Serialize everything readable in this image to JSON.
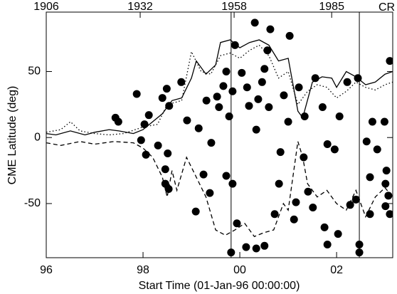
{
  "chart_data": {
    "type": "scatter",
    "x_label": "Start Time (01-Jan-96 00:00:00)",
    "y_label": "CME Latitude (deg)",
    "top_axis_label": "CR",
    "xlim": [
      0,
      7.16
    ],
    "xticks": [
      {
        "value": 0,
        "label": "96"
      },
      {
        "value": 2,
        "label": "98"
      },
      {
        "value": 4,
        "label": "00"
      },
      {
        "value": 6,
        "label": "02"
      }
    ],
    "x2lim": [
      1906,
      2001.9
    ],
    "x2ticks": [
      1906,
      1932,
      1958,
      1985
    ],
    "ylim": [
      -91,
      95
    ],
    "yticks": [
      -50,
      0,
      50
    ],
    "vlines": [
      3.82,
      6.47
    ],
    "color": "#000000",
    "points": {
      "x": [
        1.87,
        1.43,
        1.49,
        1.96,
        2.03,
        2.06,
        2.31,
        2.46,
        2.51,
        2.46,
        2.53,
        2.12,
        2.4,
        2.54,
        2.49,
        2.79,
        2.91,
        3.09,
        3.15,
        3.25,
        3.38,
        3.31,
        3.41,
        3.53,
        3.57,
        3.66,
        3.72,
        3.78,
        3.85,
        3.72,
        3.85,
        3.82,
        3.94,
        3.9,
        4.04,
        4.15,
        4.19,
        4.31,
        4.34,
        4.38,
        4.46,
        4.51,
        4.57,
        4.63,
        4.6,
        4.51,
        4.13,
        4.34,
        4.72,
        4.81,
        4.84,
        4.91,
        5.0,
        5.03,
        5.12,
        5.16,
        5.22,
        5.34,
        5.32,
        5.41,
        5.51,
        5.56,
        5.71,
        5.75,
        5.81,
        5.81,
        5.96,
        6.03,
        6.06,
        6.22,
        6.28,
        6.4,
        6.44,
        6.47,
        6.47,
        6.62,
        6.69,
        6.74,
        6.84,
        6.99,
        7.01,
        7.01,
        7.07,
        7.1,
        6.69,
        7.03,
        7.1
      ],
      "values": [
        33,
        15,
        12,
        -2,
        10,
        -13,
        -6,
        -24,
        -12,
        -35,
        -39,
        17,
        30,
        24,
        37,
        42,
        13,
        -56,
        7,
        -28,
        -42,
        28,
        -4,
        31,
        23,
        39,
        50,
        16,
        35,
        -29,
        -35,
        -87,
        -65,
        70,
        49,
        38,
        24,
        87,
        6,
        29,
        42,
        52,
        66,
        82,
        23,
        -82,
        -83,
        -84,
        -58,
        -35,
        -11,
        32,
        12,
        77,
        -62,
        -49,
        38,
        16,
        -15,
        -41,
        -53,
        45,
        23,
        -68,
        -81,
        -5,
        -9,
        -73,
        16,
        42,
        -51,
        -47,
        45,
        -81,
        -87,
        -3,
        -58,
        12,
        -9,
        12,
        -35,
        -52,
        -44,
        58,
        -30,
        -25,
        -58
      ]
    },
    "lines": [
      {
        "style": "solid",
        "x": [
          0,
          0.2,
          0.5,
          0.8,
          1.0,
          1.3,
          1.5,
          1.8,
          2.0,
          2.2,
          2.4,
          2.6,
          2.8,
          3.0,
          3.1,
          3.3,
          3.5,
          3.6,
          3.8,
          4.0,
          4.2,
          4.4,
          4.6,
          4.8,
          5.0,
          5.2,
          5.3,
          5.5,
          5.7,
          5.9,
          6.0,
          6.2,
          6.4,
          6.6,
          6.8,
          7.0,
          7.16
        ],
        "values": [
          3,
          2,
          5,
          2,
          4,
          6,
          5,
          3,
          6,
          12,
          18,
          28,
          30,
          45,
          58,
          48,
          55,
          72,
          74,
          68,
          72,
          74,
          70,
          58,
          60,
          20,
          15,
          42,
          46,
          45,
          38,
          50,
          46,
          40,
          42,
          48,
          50
        ]
      },
      {
        "style": "dotted",
        "x": [
          0,
          0.3,
          0.5,
          0.7,
          1.0,
          1.3,
          1.6,
          2.0,
          2.3,
          2.5,
          2.8,
          3.0,
          3.2,
          3.4,
          3.6,
          3.8,
          4.0,
          4.2,
          4.4,
          4.6,
          4.8,
          5.0,
          5.2,
          5.4,
          5.6,
          5.8,
          6.0,
          6.2,
          6.4,
          6.6,
          6.8,
          7.0,
          7.16
        ],
        "values": [
          4,
          6,
          12,
          5,
          3,
          2,
          3,
          8,
          10,
          25,
          28,
          65,
          50,
          48,
          62,
          64,
          60,
          66,
          70,
          62,
          45,
          50,
          25,
          35,
          40,
          38,
          30,
          35,
          42,
          38,
          36,
          40,
          42
        ]
      },
      {
        "style": "dashed",
        "x": [
          0,
          0.3,
          0.7,
          1.0,
          1.4,
          1.8,
          2.0,
          2.2,
          2.4,
          2.5,
          2.6,
          2.7,
          2.9,
          3.1,
          3.3,
          3.5,
          3.7,
          3.9,
          4.1,
          4.3,
          4.5,
          4.7,
          4.9,
          5.0,
          5.2,
          5.3,
          5.4,
          5.6,
          5.8,
          6.0,
          6.2,
          6.4,
          6.6,
          6.8,
          7.0,
          7.16
        ],
        "values": [
          -4,
          -6,
          -3,
          -5,
          -3,
          -4,
          -8,
          -15,
          -30,
          -45,
          -25,
          -40,
          -15,
          -30,
          -45,
          -70,
          -74,
          -70,
          -65,
          -75,
          -72,
          -70,
          -50,
          -55,
          -3,
          -15,
          -35,
          -45,
          -40,
          -50,
          -55,
          -40,
          -60,
          -45,
          -38,
          -45
        ]
      }
    ]
  }
}
